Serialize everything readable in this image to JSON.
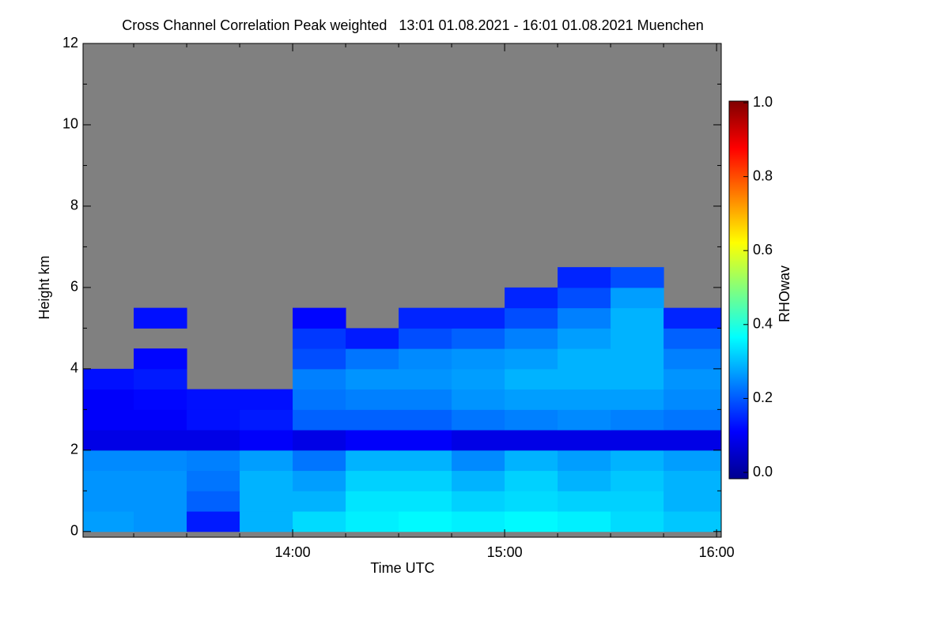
{
  "chart_data": {
    "type": "heatmap",
    "title": "Cross Channel Correlation Peak weighted   13:01 01.08.2021 - 16:01 01.08.2021 Muenchen",
    "xlabel": "Time UTC",
    "ylabel": "Height km",
    "colorbar_label": "RHOwav",
    "xlim": [
      13.011,
      16.022
    ],
    "xticks": [
      {
        "value": 14,
        "label": "14:00"
      },
      {
        "value": 15,
        "label": "15:00"
      },
      {
        "value": 16,
        "label": "16:00"
      }
    ],
    "xticks_minor": [
      13.25,
      13.5,
      13.75,
      14.25,
      14.5,
      14.75,
      15.25,
      15.5,
      15.75
    ],
    "ylim": [
      -0.14,
      12
    ],
    "yticks": [
      0,
      2,
      4,
      6,
      8,
      10,
      12
    ],
    "yticks_minor": [
      1,
      3,
      5,
      7,
      9,
      11
    ],
    "zlim": [
      0,
      1
    ],
    "zticks": [
      {
        "value": 0,
        "label": "0.0"
      },
      {
        "value": 0.2,
        "label": "0.2"
      },
      {
        "value": 0.4,
        "label": "0.4"
      },
      {
        "value": 0.6,
        "label": "0.6"
      },
      {
        "value": 0.8,
        "label": "0.8"
      },
      {
        "value": 1,
        "label": "1.0"
      }
    ],
    "colormap": "jet",
    "x_edges": [
      13,
      13.25,
      13.5,
      13.75,
      14,
      14.25,
      14.5,
      14.75,
      15,
      15.25,
      15.5,
      15.75,
      16.05
    ],
    "y_edges": [
      0,
      0.5,
      1,
      1.5,
      2,
      2.5,
      3,
      3.5,
      4,
      4.5,
      5,
      5.5,
      6,
      6.5
    ],
    "z": [
      [
        0.28,
        0.27,
        0.15,
        0.3,
        0.34,
        0.36,
        0.37,
        0.36,
        0.37,
        0.36,
        0.34,
        0.32
      ],
      [
        0.27,
        0.27,
        0.22,
        0.3,
        0.3,
        0.35,
        0.35,
        0.33,
        0.34,
        0.33,
        0.33,
        0.3
      ],
      [
        0.27,
        0.27,
        0.24,
        0.3,
        0.28,
        0.33,
        0.33,
        0.3,
        0.33,
        0.3,
        0.32,
        0.3
      ],
      [
        0.26,
        0.26,
        0.25,
        0.28,
        0.24,
        0.3,
        0.3,
        0.26,
        0.3,
        0.28,
        0.3,
        0.28
      ],
      [
        0.1,
        0.1,
        0.1,
        0.12,
        0.1,
        0.12,
        0.12,
        0.1,
        0.1,
        0.1,
        0.1,
        0.1
      ],
      [
        0.12,
        0.12,
        0.14,
        0.15,
        0.22,
        0.22,
        0.22,
        0.24,
        0.25,
        0.26,
        0.25,
        0.24
      ],
      [
        0.12,
        0.13,
        0.14,
        0.14,
        0.24,
        0.25,
        0.25,
        0.27,
        0.28,
        0.28,
        0.28,
        0.26
      ],
      [
        0.14,
        0.15,
        null,
        null,
        0.25,
        0.27,
        0.27,
        0.28,
        0.3,
        0.3,
        0.3,
        0.27
      ],
      [
        null,
        0.13,
        null,
        null,
        0.2,
        0.24,
        0.26,
        0.27,
        0.28,
        0.3,
        0.3,
        0.25
      ],
      [
        null,
        null,
        null,
        null,
        0.18,
        0.15,
        0.2,
        0.22,
        0.25,
        0.28,
        0.3,
        0.22
      ],
      [
        null,
        0.14,
        null,
        null,
        0.13,
        null,
        0.16,
        0.16,
        0.2,
        0.25,
        0.3,
        0.16
      ],
      [
        null,
        null,
        null,
        null,
        null,
        null,
        null,
        null,
        0.16,
        0.2,
        0.28,
        null
      ],
      [
        null,
        null,
        null,
        null,
        null,
        null,
        null,
        null,
        null,
        0.16,
        0.2,
        null
      ]
    ]
  }
}
